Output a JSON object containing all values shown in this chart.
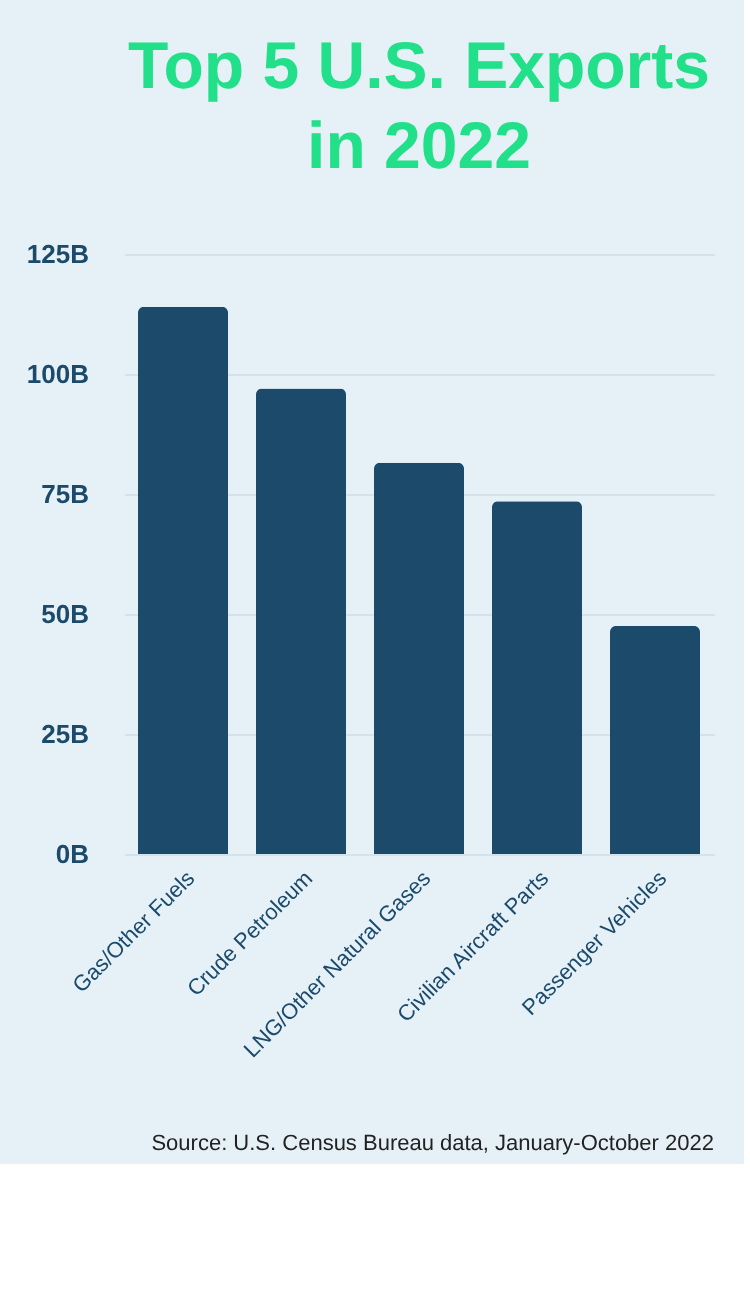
{
  "chart_data": {
    "type": "bar",
    "title": "Top 5 U.S. Exports in 2022",
    "categories": [
      "Gas/Other Fuels",
      "Crude Petroleum",
      "LNG/Other Natural Gases",
      "Civilian Aircraft Parts",
      "Passenger Vehicles"
    ],
    "values": [
      114,
      97,
      81.5,
      73.5,
      47.5
    ],
    "color": "#1b4a6b",
    "ylim": [
      0,
      125
    ],
    "yticks": [
      {
        "value": 0,
        "label": "0B"
      },
      {
        "value": 25,
        "label": "25B"
      },
      {
        "value": 50,
        "label": "50B"
      },
      {
        "value": 75,
        "label": "75B"
      },
      {
        "value": 100,
        "label": "100B"
      },
      {
        "value": 125,
        "label": "125B"
      }
    ],
    "grid": "y",
    "annotations": [
      "Source: U.S. Census Bureau data, January-October 2022"
    ]
  }
}
